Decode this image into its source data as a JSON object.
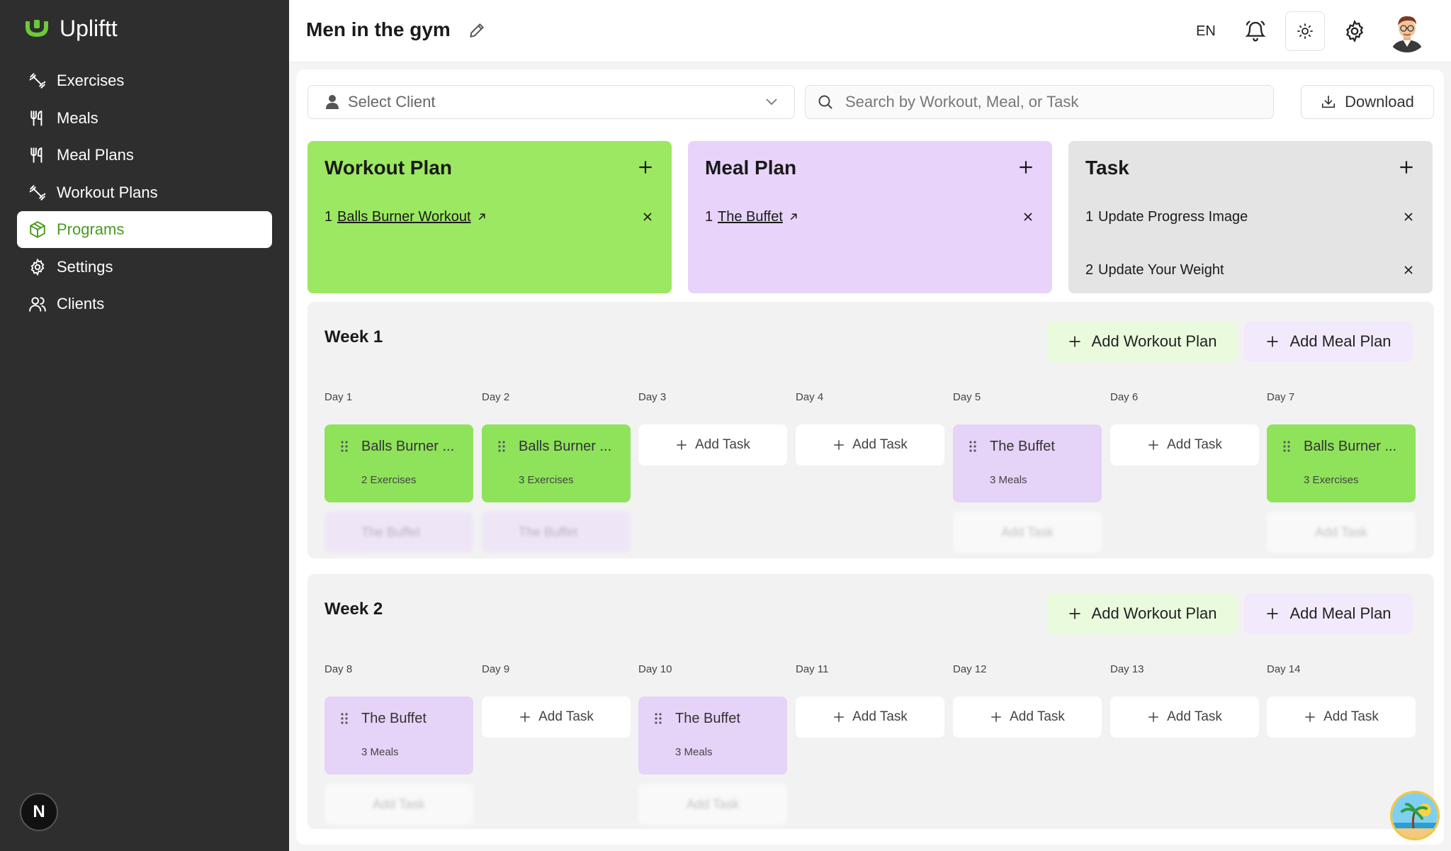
{
  "app": {
    "name": "Upliftt",
    "accent": "#4a9a1f"
  },
  "sidebar": {
    "items": [
      {
        "label": "Exercises",
        "icon": "dumbbell-icon",
        "active": false
      },
      {
        "label": "Meals",
        "icon": "utensils-icon",
        "active": false
      },
      {
        "label": "Meal Plans",
        "icon": "utensils-icon",
        "active": false
      },
      {
        "label": "Workout Plans",
        "icon": "dumbbell-icon",
        "active": false
      },
      {
        "label": "Programs",
        "icon": "box-icon",
        "active": true
      },
      {
        "label": "Settings",
        "icon": "gear-icon",
        "active": false
      },
      {
        "label": "Clients",
        "icon": "users-icon",
        "active": false
      }
    ],
    "footer_badge": "N"
  },
  "header": {
    "title": "Men in the gym",
    "language": "EN"
  },
  "toolbar": {
    "client_placeholder": "Select Client",
    "search_placeholder": "Search by Workout, Meal, or Task",
    "download_label": "Download"
  },
  "plans": {
    "workout": {
      "title": "Workout Plan",
      "color": "#9ce862",
      "items": [
        {
          "index": "1",
          "name": "Balls Burner Workout"
        }
      ]
    },
    "meal": {
      "title": "Meal Plan",
      "color": "#e8d4fb",
      "items": [
        {
          "index": "1",
          "name": "The Buffet"
        }
      ]
    },
    "task": {
      "title": "Task",
      "color": "#e4e4e4",
      "items": [
        {
          "index": "1",
          "name": "Update Progress Image"
        },
        {
          "index": "2",
          "name": "Update Your Weight"
        }
      ]
    }
  },
  "weeks": [
    {
      "title": "Week 1",
      "add_workout_label": "Add Workout Plan",
      "add_meal_label": "Add Meal Plan",
      "days": [
        {
          "label": "Day 1",
          "tile": {
            "name": "Balls Burner ...",
            "sub": "2 Exercises"
          },
          "ghost": "The Buffet"
        },
        {
          "label": "Day 2",
          "tile": {
            "name": "Balls Burner ...",
            "sub": "3 Exercises"
          },
          "ghost": "The Buffet"
        },
        {
          "label": "Day 3",
          "add_task": "Add Task"
        },
        {
          "label": "Day 4",
          "add_task": "Add Task"
        },
        {
          "label": "Day 5",
          "tile": {
            "name": "The Buffet",
            "sub": "3 Meals"
          },
          "ghost": "Add Task"
        },
        {
          "label": "Day 6",
          "add_task": "Add Task"
        },
        {
          "label": "Day 7",
          "tile": {
            "name": "Balls Burner ...",
            "sub": "3 Exercises"
          },
          "ghost": "Add Task"
        }
      ]
    },
    {
      "title": "Week 2",
      "add_workout_label": "Add Workout Plan",
      "add_meal_label": "Add Meal Plan",
      "days": [
        {
          "label": "Day 8",
          "tile": {
            "name": "The Buffet",
            "sub": "3 Meals"
          },
          "ghost": "Add Task"
        },
        {
          "label": "Day 9",
          "add_task": "Add Task"
        },
        {
          "label": "Day 10",
          "tile": {
            "name": "The Buffet",
            "sub": "3 Meals"
          },
          "ghost": "Add Task"
        },
        {
          "label": "Day 11",
          "add_task": "Add Task"
        },
        {
          "label": "Day 12",
          "add_task": "Add Task"
        },
        {
          "label": "Day 13",
          "add_task": "Add Task"
        },
        {
          "label": "Day 14",
          "add_task": "Add Task"
        }
      ]
    }
  ]
}
